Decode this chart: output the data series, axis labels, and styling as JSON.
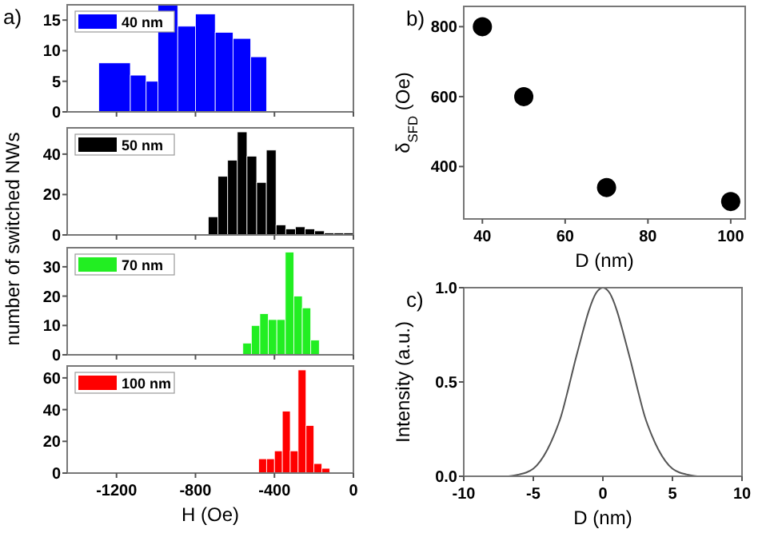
{
  "chart_data": [
    {
      "type": "histogram",
      "annotations": [
        "a)"
      ],
      "ylabel": "number of switched NWs",
      "xlim": [
        -1450,
        0
      ],
      "xticks": [
        -1200,
        -800,
        -400,
        0
      ],
      "ylim": [
        0,
        17.5
      ],
      "yticks": [
        0,
        5,
        10,
        15
      ],
      "tick_labels": "y",
      "legend": "top left",
      "bins": [
        -1290,
        -1130,
        -1050,
        -990,
        -890,
        -800,
        -700,
        -610,
        -520,
        -440
      ],
      "series": [
        {
          "name": "40 nm",
          "color": "#0000ff",
          "values": [
            8,
            6,
            5,
            17.5,
            14,
            16,
            13,
            12,
            9
          ]
        }
      ]
    },
    {
      "type": "histogram",
      "xlim": [
        -1450,
        0
      ],
      "xticks": [
        -1200,
        -800,
        -400,
        0
      ],
      "ylim": [
        0,
        53
      ],
      "yticks": [
        0,
        20,
        40
      ],
      "tick_labels": "y",
      "legend": "top left",
      "bins": [
        -735,
        -686,
        -637,
        -588,
        -539,
        -490,
        -441,
        -392,
        -343,
        -294,
        -245,
        -196,
        -147,
        -98,
        -49,
        0
      ],
      "series": [
        {
          "name": "50 nm",
          "color": "#000000",
          "values": [
            9,
            29,
            37,
            51,
            39,
            26,
            42,
            5,
            3,
            4,
            3,
            2,
            1,
            1,
            1
          ]
        }
      ]
    },
    {
      "type": "histogram",
      "xlim": [
        -1450,
        0
      ],
      "xticks": [
        -1200,
        -800,
        -400,
        0
      ],
      "ylim": [
        0,
        36.5
      ],
      "yticks": [
        0,
        10,
        20,
        30
      ],
      "tick_labels": "y",
      "legend": "top left",
      "bins": [
        -560,
        -517,
        -474,
        -431,
        -388,
        -345,
        -302,
        -259,
        -216,
        -173
      ],
      "series": [
        {
          "name": "70 nm",
          "color": "#22ee22",
          "values": [
            4,
            10,
            14,
            12,
            12,
            35,
            20,
            16,
            5
          ]
        }
      ]
    },
    {
      "type": "histogram",
      "xlabel": "H (Oe)",
      "xlim": [
        -1450,
        0
      ],
      "xticks": [
        -1200,
        -800,
        -400,
        0
      ],
      "ylim": [
        0,
        67.5
      ],
      "yticks": [
        0,
        20,
        40,
        60
      ],
      "legend": "top left",
      "bins": [
        -480,
        -440,
        -400,
        -360,
        -320,
        -280,
        -240,
        -200,
        -160,
        -120
      ],
      "series": [
        {
          "name": "100 nm",
          "color": "#ff0000",
          "values": [
            9,
            9,
            14,
            39,
            14,
            65,
            30,
            6,
            3
          ]
        }
      ]
    },
    {
      "type": "scatter",
      "annotations": [
        "b)"
      ],
      "xlabel": "D (nm)",
      "ylabel": "δ$_{SFD}$ (Oe)",
      "xlim": [
        35.5,
        103.5
      ],
      "xticks": [
        40,
        60,
        80,
        100
      ],
      "ylim": [
        250,
        858
      ],
      "yticks": [
        400,
        600,
        800
      ],
      "marker": "circle",
      "x": [
        40,
        50,
        70,
        100
      ],
      "series": [
        {
          "color": "#000000",
          "values": [
            800,
            600,
            340,
            300
          ]
        }
      ]
    },
    {
      "type": "line",
      "annotations": [
        "c)"
      ],
      "xlabel": "D (nm)",
      "ylabel": "Intensity (a.u.)",
      "xlim": [
        -10,
        10
      ],
      "xticks": [
        -10,
        -5,
        0,
        5,
        10
      ],
      "ylim": [
        0,
        1
      ],
      "yticks": [
        {
          "value": 0,
          "label": "0.0"
        },
        {
          "value": 0.5,
          "label": "0.5"
        },
        {
          "value": 1,
          "label": "1.0"
        }
      ],
      "x": [
        -8,
        -7,
        -6,
        -5.5,
        -5,
        -4.5,
        -4,
        -3.5,
        -3,
        -2.5,
        -2,
        -1.5,
        -1,
        -0.5,
        0,
        0.5,
        1,
        1.5,
        2,
        2.5,
        3,
        3.5,
        4,
        4.5,
        5,
        5.5,
        6,
        7,
        8
      ],
      "series": [
        {
          "color": "#555555",
          "values": [
            0,
            0,
            0.01,
            0.02,
            0.04,
            0.08,
            0.14,
            0.22,
            0.32,
            0.46,
            0.61,
            0.75,
            0.88,
            0.97,
            1,
            0.97,
            0.88,
            0.75,
            0.61,
            0.46,
            0.32,
            0.22,
            0.14,
            0.08,
            0.04,
            0.02,
            0.01,
            0,
            0
          ]
        }
      ]
    }
  ]
}
